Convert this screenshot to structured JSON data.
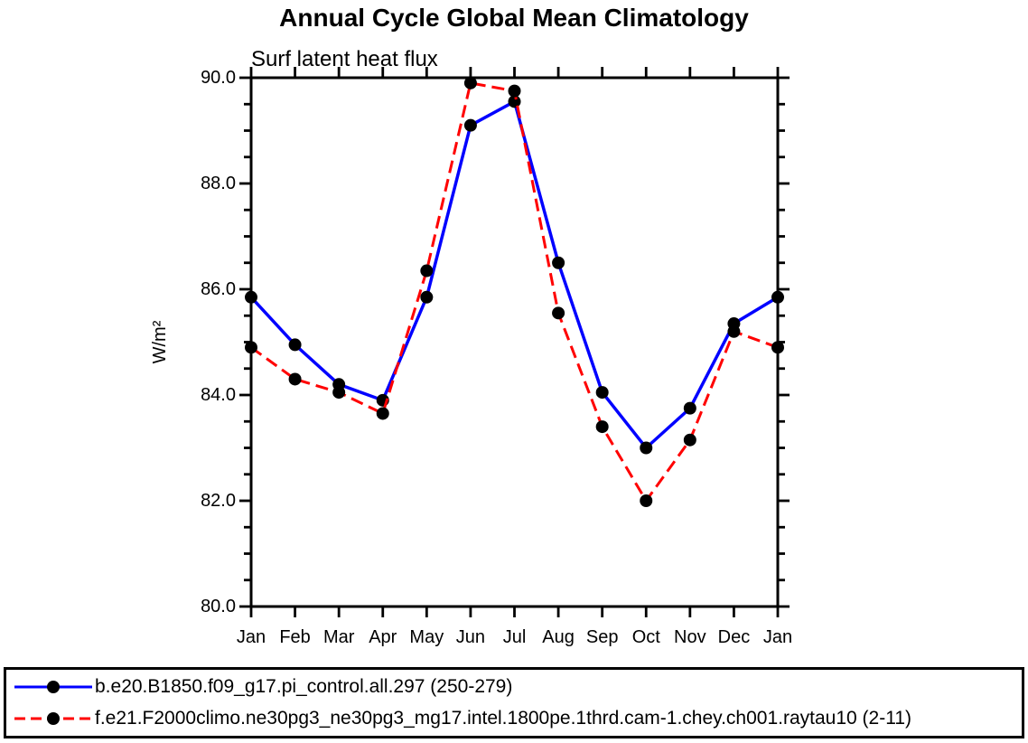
{
  "chart_data": {
    "type": "line",
    "title": "Annual Cycle Global Mean Climatology",
    "subtitle": "Surf latent heat flux",
    "xlabel": "",
    "ylabel": "W/m²",
    "categories": [
      "Jan",
      "Feb",
      "Mar",
      "Apr",
      "May",
      "Jun",
      "Jul",
      "Aug",
      "Sep",
      "Oct",
      "Nov",
      "Dec",
      "Jan"
    ],
    "ylim": [
      80.0,
      90.0
    ],
    "ytick_step": 2.0,
    "ytick_minor_step": 0.5,
    "ytick_labels": [
      "80.0",
      "82.0",
      "84.0",
      "86.0",
      "88.0",
      "90.0"
    ],
    "grid": false,
    "legend_position": "bottom-left-box",
    "series": [
      {
        "name": "b.e20.B1850.f09_g17.pi_control.all.297 (250-279)",
        "color": "#0000ff",
        "line_style": "solid",
        "marker": "circle",
        "marker_color": "#000000",
        "values": [
          85.85,
          84.95,
          84.2,
          83.9,
          85.85,
          89.1,
          89.55,
          86.5,
          84.05,
          83.0,
          83.75,
          85.35,
          85.85
        ]
      },
      {
        "name": "f.e21.F2000climo.ne30pg3_ne30pg3_mg17.intel.1800pe.1thrd.cam-1.chey.ch001.raytau10 (2-11)",
        "color": "#ff0000",
        "line_style": "dashed",
        "marker": "circle",
        "marker_color": "#000000",
        "values": [
          84.9,
          84.3,
          84.05,
          83.65,
          86.35,
          89.9,
          89.75,
          85.55,
          83.4,
          82.0,
          83.15,
          85.2,
          84.9
        ]
      }
    ]
  },
  "legend": {
    "entries": [
      {
        "label": "b.e20.B1850.f09_g17.pi_control.all.297 (250-279)",
        "color": "#0000ff",
        "style": "solid"
      },
      {
        "label": "f.e21.F2000climo.ne30pg3_ne30pg3_mg17.intel.1800pe.1thrd.cam-1.chey.ch001.raytau10 (2-11)",
        "color": "#ff0000",
        "style": "dashed"
      }
    ]
  }
}
